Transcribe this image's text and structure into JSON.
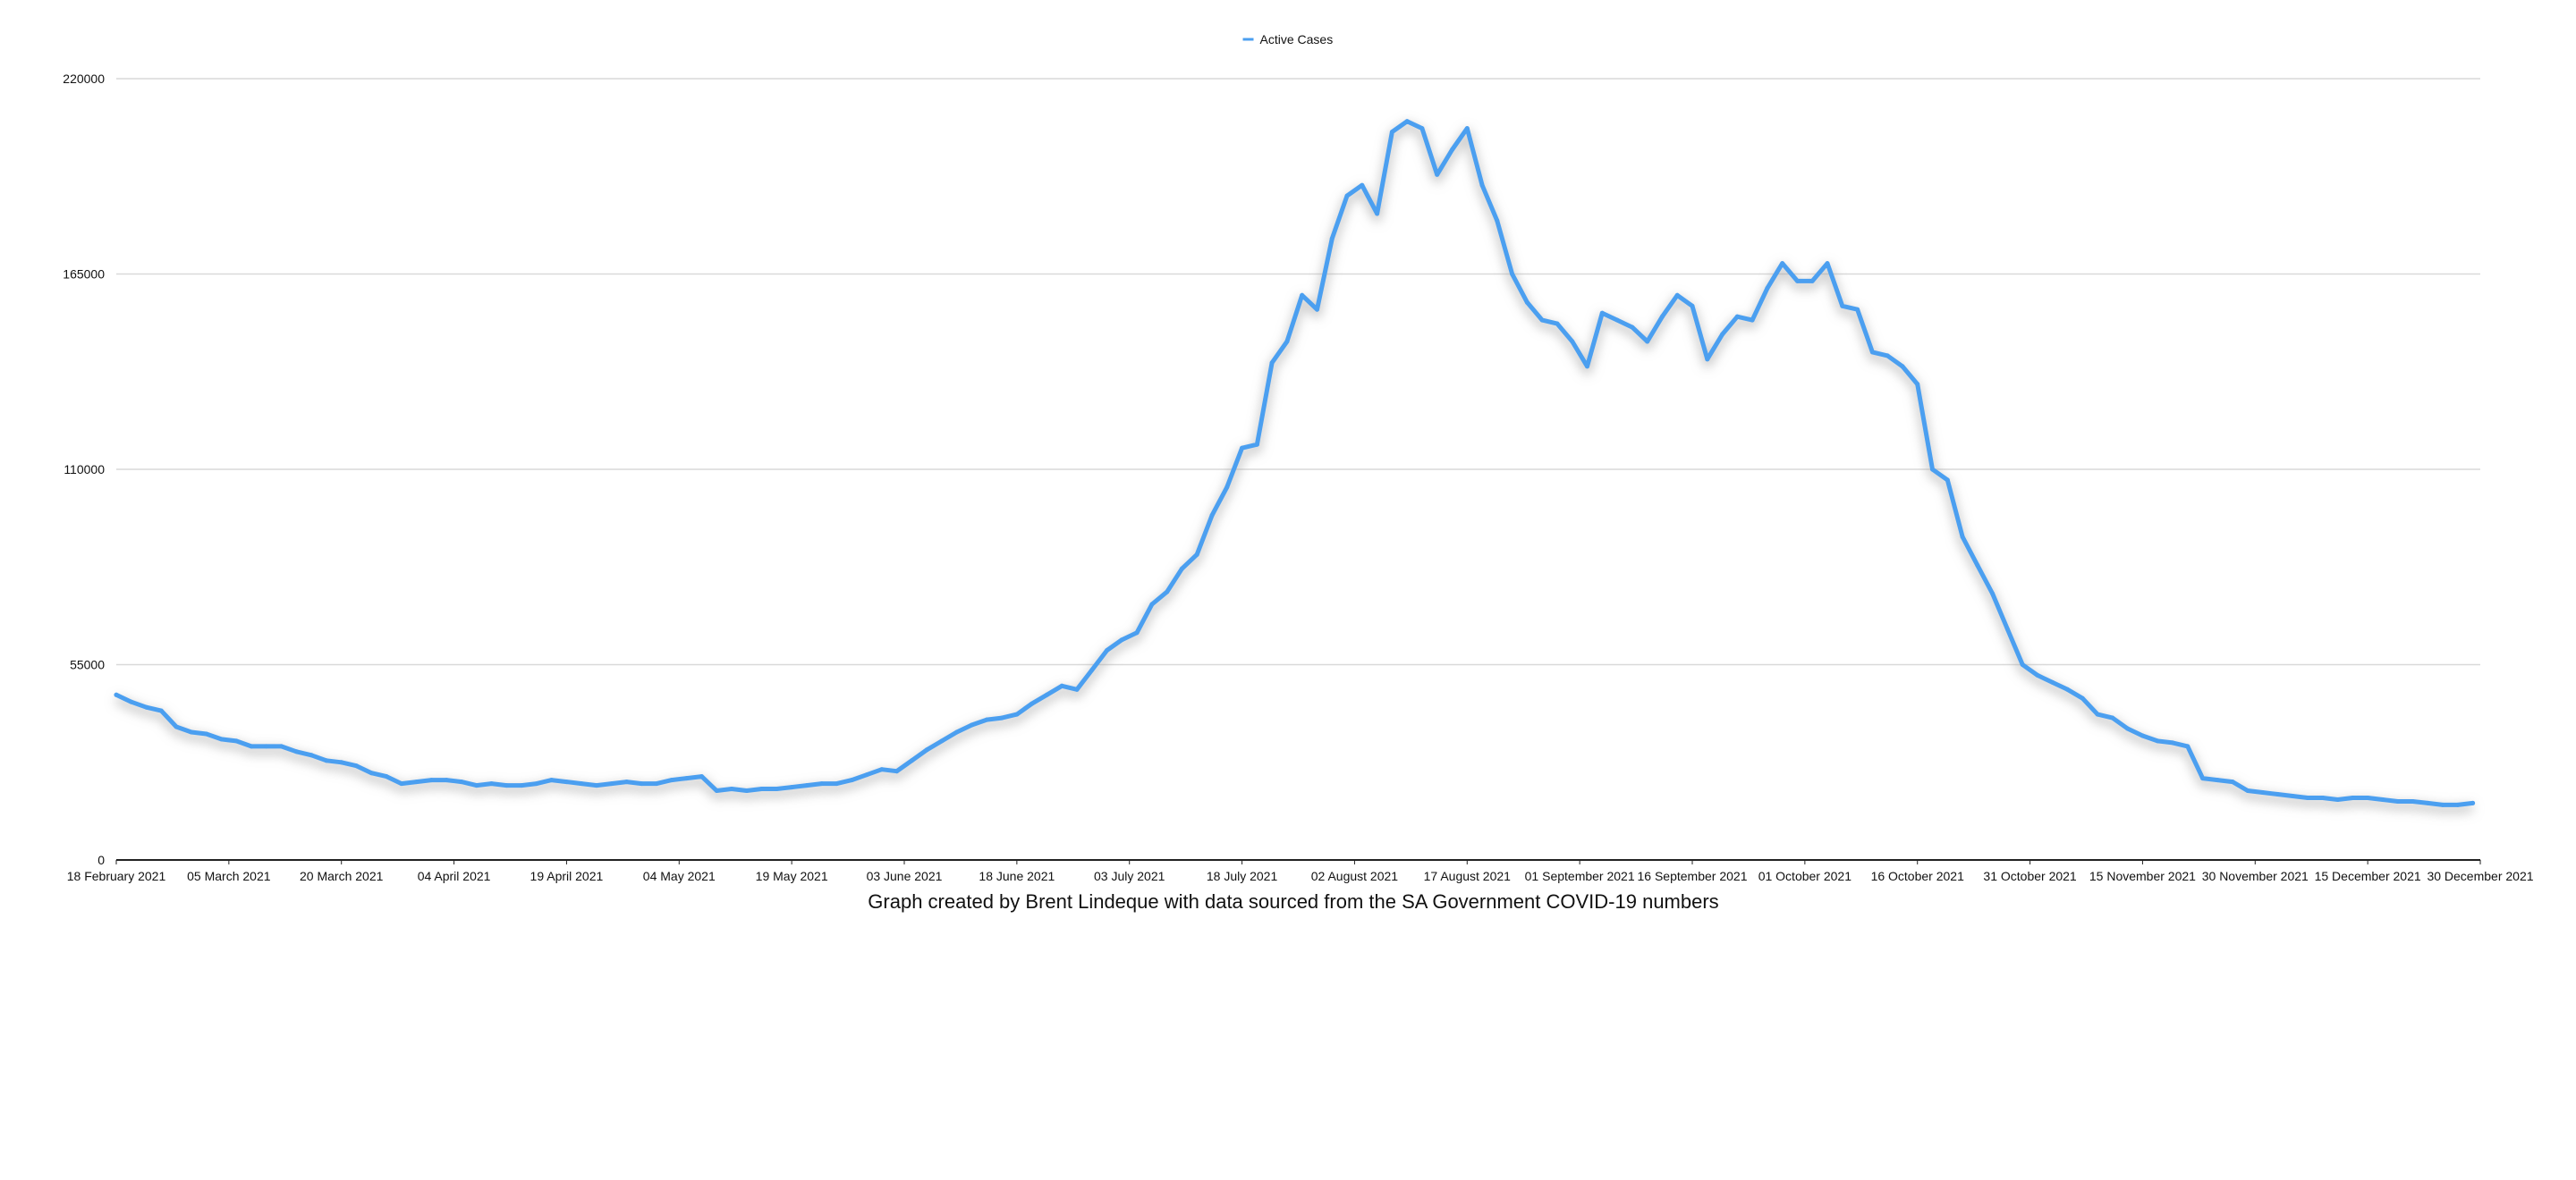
{
  "chart_data": {
    "type": "line",
    "title": "",
    "xlabel": "",
    "ylabel": "",
    "caption": "Graph created by Brent Lindeque with data sourced from the SA Government COVID-19 numbers",
    "legend": {
      "position": "top-center",
      "entries": [
        "Active Cases"
      ]
    },
    "colors": {
      "series": "#4b9ff0",
      "shadow": "#9a9a9a",
      "grid": "#d9d9d9",
      "axis": "#222222"
    },
    "grid": true,
    "xlim": [
      "2021-02-18",
      "2021-12-30"
    ],
    "ylim": [
      0,
      220000
    ],
    "y_ticks": [
      0,
      55000,
      110000,
      165000,
      220000
    ],
    "x_ticks": [
      {
        "date": "2021-02-18",
        "label": "18 February 2021"
      },
      {
        "date": "2021-03-05",
        "label": "05 March 2021"
      },
      {
        "date": "2021-03-20",
        "label": "20 March 2021"
      },
      {
        "date": "2021-04-04",
        "label": "04 April 2021"
      },
      {
        "date": "2021-04-19",
        "label": "19 April 2021"
      },
      {
        "date": "2021-05-04",
        "label": "04 May 2021"
      },
      {
        "date": "2021-05-19",
        "label": "19 May 2021"
      },
      {
        "date": "2021-06-03",
        "label": "03 June 2021"
      },
      {
        "date": "2021-06-18",
        "label": "18 June 2021"
      },
      {
        "date": "2021-07-03",
        "label": "03 July 2021"
      },
      {
        "date": "2021-07-18",
        "label": "18 July 2021"
      },
      {
        "date": "2021-08-02",
        "label": "02 August 2021"
      },
      {
        "date": "2021-08-17",
        "label": "17 August 2021"
      },
      {
        "date": "2021-09-01",
        "label": "01 September 2021"
      },
      {
        "date": "2021-09-16",
        "label": "16 September 2021"
      },
      {
        "date": "2021-10-01",
        "label": "01 October 2021"
      },
      {
        "date": "2021-10-16",
        "label": "16 October 2021"
      },
      {
        "date": "2021-10-31",
        "label": "31 October 2021"
      },
      {
        "date": "2021-11-15",
        "label": "15 November 2021"
      },
      {
        "date": "2021-11-30",
        "label": "30 November 2021"
      },
      {
        "date": "2021-12-15",
        "label": "15 December 2021"
      },
      {
        "date": "2021-12-30",
        "label": "30 December 2021"
      }
    ],
    "series": [
      {
        "name": "Active Cases",
        "points": [
          {
            "x": "2021-02-18",
            "y": 46500
          },
          {
            "x": "2021-02-20",
            "y": 44500
          },
          {
            "x": "2021-02-22",
            "y": 43000
          },
          {
            "x": "2021-02-24",
            "y": 42000
          },
          {
            "x": "2021-02-26",
            "y": 37500
          },
          {
            "x": "2021-02-28",
            "y": 36000
          },
          {
            "x": "2021-03-02",
            "y": 35500
          },
          {
            "x": "2021-03-04",
            "y": 34000
          },
          {
            "x": "2021-03-06",
            "y": 33500
          },
          {
            "x": "2021-03-08",
            "y": 32000
          },
          {
            "x": "2021-03-10",
            "y": 32000
          },
          {
            "x": "2021-03-12",
            "y": 32000
          },
          {
            "x": "2021-03-14",
            "y": 30500
          },
          {
            "x": "2021-03-16",
            "y": 29500
          },
          {
            "x": "2021-03-18",
            "y": 28000
          },
          {
            "x": "2021-03-20",
            "y": 27500
          },
          {
            "x": "2021-03-22",
            "y": 26500
          },
          {
            "x": "2021-03-24",
            "y": 24500
          },
          {
            "x": "2021-03-26",
            "y": 23500
          },
          {
            "x": "2021-03-28",
            "y": 21500
          },
          {
            "x": "2021-03-30",
            "y": 22000
          },
          {
            "x": "2021-04-01",
            "y": 22500
          },
          {
            "x": "2021-04-03",
            "y": 22500
          },
          {
            "x": "2021-04-05",
            "y": 22000
          },
          {
            "x": "2021-04-07",
            "y": 21000
          },
          {
            "x": "2021-04-09",
            "y": 21500
          },
          {
            "x": "2021-04-11",
            "y": 21000
          },
          {
            "x": "2021-04-13",
            "y": 21000
          },
          {
            "x": "2021-04-15",
            "y": 21500
          },
          {
            "x": "2021-04-17",
            "y": 22500
          },
          {
            "x": "2021-04-19",
            "y": 22000
          },
          {
            "x": "2021-04-21",
            "y": 21500
          },
          {
            "x": "2021-04-23",
            "y": 21000
          },
          {
            "x": "2021-04-25",
            "y": 21500
          },
          {
            "x": "2021-04-27",
            "y": 22000
          },
          {
            "x": "2021-04-29",
            "y": 21500
          },
          {
            "x": "2021-05-01",
            "y": 21500
          },
          {
            "x": "2021-05-03",
            "y": 22500
          },
          {
            "x": "2021-05-05",
            "y": 23000
          },
          {
            "x": "2021-05-07",
            "y": 23500
          },
          {
            "x": "2021-05-09",
            "y": 19500
          },
          {
            "x": "2021-05-11",
            "y": 20000
          },
          {
            "x": "2021-05-13",
            "y": 19500
          },
          {
            "x": "2021-05-15",
            "y": 20000
          },
          {
            "x": "2021-05-17",
            "y": 20000
          },
          {
            "x": "2021-05-19",
            "y": 20500
          },
          {
            "x": "2021-05-21",
            "y": 21000
          },
          {
            "x": "2021-05-23",
            "y": 21500
          },
          {
            "x": "2021-05-25",
            "y": 21500
          },
          {
            "x": "2021-05-27",
            "y": 22500
          },
          {
            "x": "2021-05-29",
            "y": 24000
          },
          {
            "x": "2021-05-31",
            "y": 25500
          },
          {
            "x": "2021-06-02",
            "y": 25000
          },
          {
            "x": "2021-06-04",
            "y": 28000
          },
          {
            "x": "2021-06-06",
            "y": 31000
          },
          {
            "x": "2021-06-08",
            "y": 33500
          },
          {
            "x": "2021-06-10",
            "y": 36000
          },
          {
            "x": "2021-06-12",
            "y": 38000
          },
          {
            "x": "2021-06-14",
            "y": 39500
          },
          {
            "x": "2021-06-16",
            "y": 40000
          },
          {
            "x": "2021-06-18",
            "y": 41000
          },
          {
            "x": "2021-06-20",
            "y": 44000
          },
          {
            "x": "2021-06-22",
            "y": 46500
          },
          {
            "x": "2021-06-24",
            "y": 49000
          },
          {
            "x": "2021-06-26",
            "y": 48000
          },
          {
            "x": "2021-06-28",
            "y": 53500
          },
          {
            "x": "2021-06-30",
            "y": 59000
          },
          {
            "x": "2021-07-02",
            "y": 62000
          },
          {
            "x": "2021-07-04",
            "y": 64000
          },
          {
            "x": "2021-07-06",
            "y": 72000
          },
          {
            "x": "2021-07-08",
            "y": 75500
          },
          {
            "x": "2021-07-10",
            "y": 82000
          },
          {
            "x": "2021-07-12",
            "y": 86000
          },
          {
            "x": "2021-07-14",
            "y": 97000
          },
          {
            "x": "2021-07-16",
            "y": 105000
          },
          {
            "x": "2021-07-18",
            "y": 116000
          },
          {
            "x": "2021-07-20",
            "y": 117000
          },
          {
            "x": "2021-07-22",
            "y": 140000
          },
          {
            "x": "2021-07-24",
            "y": 146000
          },
          {
            "x": "2021-07-26",
            "y": 159000
          },
          {
            "x": "2021-07-28",
            "y": 155000
          },
          {
            "x": "2021-07-30",
            "y": 175000
          },
          {
            "x": "2021-08-01",
            "y": 187000
          },
          {
            "x": "2021-08-03",
            "y": 190000
          },
          {
            "x": "2021-08-05",
            "y": 182000
          },
          {
            "x": "2021-08-07",
            "y": 205000
          },
          {
            "x": "2021-08-09",
            "y": 208000
          },
          {
            "x": "2021-08-11",
            "y": 206000
          },
          {
            "x": "2021-08-13",
            "y": 193000
          },
          {
            "x": "2021-08-15",
            "y": 200000
          },
          {
            "x": "2021-08-17",
            "y": 206000
          },
          {
            "x": "2021-08-19",
            "y": 190000
          },
          {
            "x": "2021-08-21",
            "y": 180000
          },
          {
            "x": "2021-08-23",
            "y": 165000
          },
          {
            "x": "2021-08-25",
            "y": 157000
          },
          {
            "x": "2021-08-27",
            "y": 152000
          },
          {
            "x": "2021-08-29",
            "y": 151000
          },
          {
            "x": "2021-08-31",
            "y": 146000
          },
          {
            "x": "2021-09-02",
            "y": 139000
          },
          {
            "x": "2021-09-04",
            "y": 154000
          },
          {
            "x": "2021-09-06",
            "y": 152000
          },
          {
            "x": "2021-09-08",
            "y": 150000
          },
          {
            "x": "2021-09-10",
            "y": 146000
          },
          {
            "x": "2021-09-12",
            "y": 153000
          },
          {
            "x": "2021-09-14",
            "y": 159000
          },
          {
            "x": "2021-09-16",
            "y": 156000
          },
          {
            "x": "2021-09-18",
            "y": 141000
          },
          {
            "x": "2021-09-20",
            "y": 148000
          },
          {
            "x": "2021-09-22",
            "y": 153000
          },
          {
            "x": "2021-09-24",
            "y": 152000
          },
          {
            "x": "2021-09-26",
            "y": 161000
          },
          {
            "x": "2021-09-28",
            "y": 168000
          },
          {
            "x": "2021-09-30",
            "y": 163000
          },
          {
            "x": "2021-10-02",
            "y": 163000
          },
          {
            "x": "2021-10-04",
            "y": 168000
          },
          {
            "x": "2021-10-06",
            "y": 156000
          },
          {
            "x": "2021-10-08",
            "y": 155000
          },
          {
            "x": "2021-10-10",
            "y": 143000
          },
          {
            "x": "2021-10-12",
            "y": 142000
          },
          {
            "x": "2021-10-14",
            "y": 139000
          },
          {
            "x": "2021-10-16",
            "y": 134000
          },
          {
            "x": "2021-10-18",
            "y": 110000
          },
          {
            "x": "2021-10-20",
            "y": 107000
          },
          {
            "x": "2021-10-22",
            "y": 91000
          },
          {
            "x": "2021-10-24",
            "y": 83000
          },
          {
            "x": "2021-10-26",
            "y": 75000
          },
          {
            "x": "2021-10-28",
            "y": 65000
          },
          {
            "x": "2021-10-30",
            "y": 55000
          },
          {
            "x": "2021-11-01",
            "y": 52000
          },
          {
            "x": "2021-11-03",
            "y": 50000
          },
          {
            "x": "2021-11-05",
            "y": 48000
          },
          {
            "x": "2021-11-07",
            "y": 45500
          },
          {
            "x": "2021-11-09",
            "y": 41000
          },
          {
            "x": "2021-11-11",
            "y": 40000
          },
          {
            "x": "2021-11-13",
            "y": 37000
          },
          {
            "x": "2021-11-15",
            "y": 35000
          },
          {
            "x": "2021-11-17",
            "y": 33500
          },
          {
            "x": "2021-11-19",
            "y": 33000
          },
          {
            "x": "2021-11-21",
            "y": 32000
          },
          {
            "x": "2021-11-23",
            "y": 23000
          },
          {
            "x": "2021-11-25",
            "y": 22500
          },
          {
            "x": "2021-11-27",
            "y": 22000
          },
          {
            "x": "2021-11-29",
            "y": 19500
          },
          {
            "x": "2021-12-01",
            "y": 19000
          },
          {
            "x": "2021-12-03",
            "y": 18500
          },
          {
            "x": "2021-12-05",
            "y": 18000
          },
          {
            "x": "2021-12-07",
            "y": 17500
          },
          {
            "x": "2021-12-09",
            "y": 17500
          },
          {
            "x": "2021-12-11",
            "y": 17000
          },
          {
            "x": "2021-12-13",
            "y": 17500
          },
          {
            "x": "2021-12-15",
            "y": 17500
          },
          {
            "x": "2021-12-17",
            "y": 17000
          },
          {
            "x": "2021-12-19",
            "y": 16500
          },
          {
            "x": "2021-12-21",
            "y": 16500
          },
          {
            "x": "2021-12-23",
            "y": 16000
          },
          {
            "x": "2021-12-25",
            "y": 15500
          },
          {
            "x": "2021-12-27",
            "y": 15500
          },
          {
            "x": "2021-12-29",
            "y": 16000
          }
        ]
      }
    ]
  }
}
